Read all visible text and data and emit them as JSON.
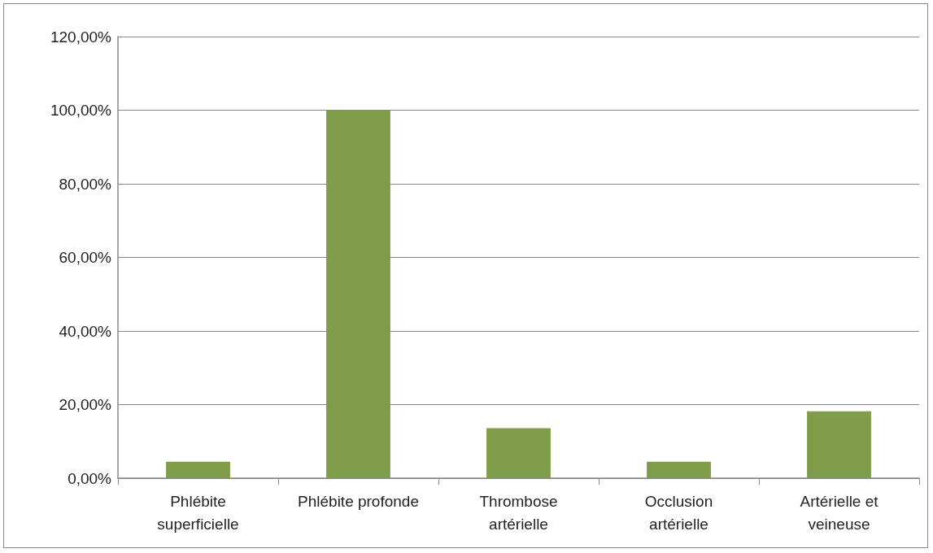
{
  "chart_data": {
    "type": "bar",
    "categories": [
      "Phlébite superficielle",
      "Phlébite profonde",
      "Thrombose artérielle",
      "Occlusion artérielle",
      "Artérielle et veineuse"
    ],
    "values": [
      4.5,
      100,
      13.6,
      4.5,
      18.2
    ],
    "color": "#7f9c4a",
    "ylim": [
      0,
      120
    ],
    "yticks": [
      {
        "value": 0,
        "label": "0,00%"
      },
      {
        "value": 20,
        "label": "20,00%"
      },
      {
        "value": 40,
        "label": "40,00%"
      },
      {
        "value": 60,
        "label": "60,00%"
      },
      {
        "value": 80,
        "label": "80,00%"
      },
      {
        "value": 100,
        "label": "100,00%"
      },
      {
        "value": 120,
        "label": "120,00%"
      }
    ],
    "grid": "y"
  }
}
